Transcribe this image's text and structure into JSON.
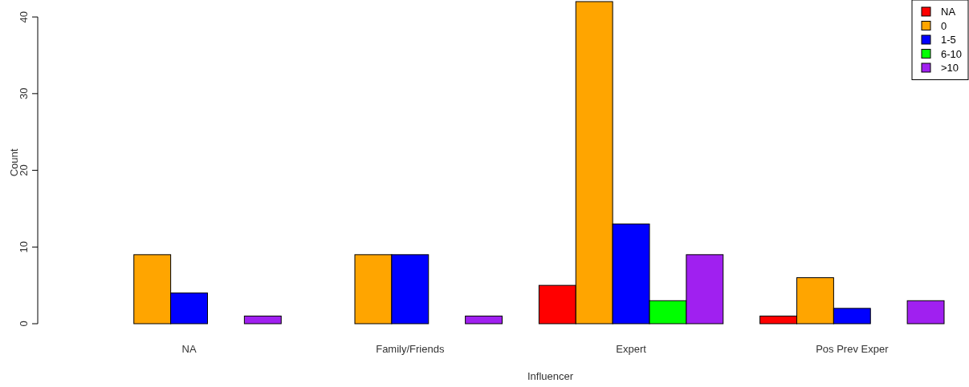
{
  "chart_data": {
    "type": "bar",
    "xlabel": "Influencer",
    "ylabel": "Count",
    "categories": [
      "NA",
      "Family/Friends",
      "Expert",
      "Pos Prev Exper"
    ],
    "series": [
      {
        "name": "NA",
        "color": "#ff0000",
        "values": [
          0,
          0,
          5,
          1
        ]
      },
      {
        "name": "0",
        "color": "#ffa500",
        "values": [
          9,
          9,
          42,
          6
        ]
      },
      {
        "name": "1-5",
        "color": "#0000ff",
        "values": [
          4,
          9,
          13,
          2
        ]
      },
      {
        "name": "6-10",
        "color": "#00ff00",
        "values": [
          0,
          0,
          3,
          0
        ]
      },
      {
        "name": ">10",
        "color": "#a020f0",
        "values": [
          1,
          1,
          9,
          3
        ]
      }
    ],
    "ylim": [
      0,
      42
    ],
    "yticks": [
      0,
      10,
      20,
      30,
      40
    ],
    "grid": false,
    "legend": "top right"
  }
}
